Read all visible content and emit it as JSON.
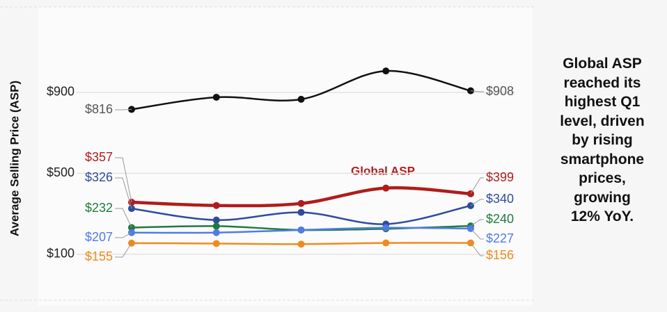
{
  "chart_data": {
    "type": "line",
    "y_label": "Average Selling Price (ASP)",
    "ylim": [
      0,
      1300
    ],
    "yticks": [
      {
        "value": 100,
        "label": "$100"
      },
      {
        "value": 500,
        "label": "$500"
      },
      {
        "value": 900,
        "label": "$900"
      }
    ],
    "grid": true,
    "annotation": "Global ASP",
    "series": [
      {
        "color": "#111111",
        "label_color": "#555555",
        "width": 2.5,
        "values": [
          816,
          876,
          866,
          1006,
          908
        ],
        "value_labels": [
          "$816",
          null,
          null,
          null,
          "$908"
        ]
      },
      {
        "color": "#b01c1c",
        "label_color": "#b01c1c",
        "width": 4.5,
        "values": [
          357,
          341,
          351,
          427,
          399
        ],
        "value_labels": [
          "$357",
          null,
          null,
          null,
          "$399"
        ]
      },
      {
        "color": "#2f4b9b",
        "label_color": "#2f4b9b",
        "width": 2.5,
        "values": [
          326,
          269,
          307,
          249,
          340
        ],
        "value_labels": [
          "$326",
          null,
          null,
          null,
          "$340"
        ]
      },
      {
        "color": "#1e7b3c",
        "label_color": "#1e7b3c",
        "width": 2.5,
        "values": [
          232,
          239,
          220,
          226,
          240
        ],
        "value_labels": [
          "$232",
          null,
          null,
          null,
          "$240"
        ]
      },
      {
        "color": "#4f7be8",
        "label_color": "#4f7be8",
        "width": 2.5,
        "values": [
          207,
          207,
          220,
          231,
          227
        ],
        "value_labels": [
          "$207",
          null,
          null,
          null,
          "$227"
        ]
      },
      {
        "color": "#f08a1c",
        "label_color": "#f08a1c",
        "width": 2.5,
        "values": [
          155,
          153,
          150,
          156,
          156
        ],
        "value_labels": [
          "$155",
          null,
          null,
          null,
          "$156"
        ]
      }
    ],
    "side_text": [
      "Global ASP",
      "reached its",
      "highest Q1",
      "level, driven",
      "by rising",
      "smartphone",
      "prices,",
      "growing",
      "12% YoY."
    ]
  }
}
